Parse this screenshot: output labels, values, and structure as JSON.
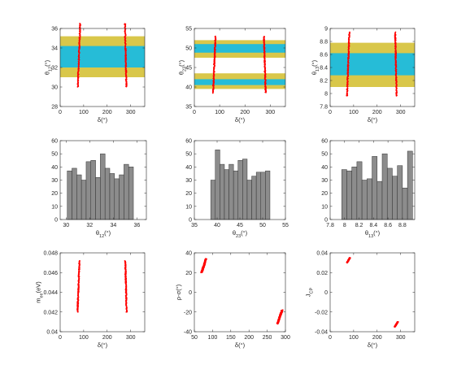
{
  "colors": {
    "band_outer": "#d9c74a",
    "band_inner": "#26bcd7",
    "marker": "#ff0000",
    "bar_fill": "#8c8c8c",
    "bar_edge": "#333333",
    "axis": "#262626"
  },
  "chart_data": [
    {
      "id": "p1",
      "type": "scatter",
      "xlabel": "δ(°)",
      "ylabel": "θ12(°)",
      "xlim": [
        0,
        360
      ],
      "ylim": [
        28,
        36
      ],
      "xticks": [
        "0",
        "100",
        "200",
        "300"
      ],
      "xtick_values": [
        0,
        100,
        200,
        300
      ],
      "yticks": [
        "28",
        "30",
        "32",
        "34",
        "36"
      ],
      "ytick_values": [
        28,
        30,
        32,
        34,
        36
      ],
      "bands": [
        {
          "ymin": 31.0,
          "ymax": 35.2,
          "color": "band_outer"
        },
        {
          "ymin": 32.0,
          "ymax": 34.2,
          "color": "band_inner"
        }
      ],
      "clusters": [
        {
          "x_start": 75,
          "x_end": 85,
          "y_min": 30.0,
          "y_max": 36.5
        },
        {
          "x_start": 282,
          "x_end": 276,
          "y_min": 30.0,
          "y_max": 36.5
        }
      ]
    },
    {
      "id": "p2",
      "type": "scatter",
      "xlabel": "δ(°)",
      "ylabel": "θ23(°)",
      "xlim": [
        0,
        360
      ],
      "ylim": [
        35,
        55
      ],
      "xticks": [
        "0",
        "100",
        "200",
        "300"
      ],
      "xtick_values": [
        0,
        100,
        200,
        300
      ],
      "yticks": [
        "35",
        "40",
        "45",
        "50",
        "55"
      ],
      "ytick_values": [
        35,
        40,
        45,
        50,
        55
      ],
      "bands": [
        {
          "ymin": 39.5,
          "ymax": 43.5,
          "color": "band_outer"
        },
        {
          "ymin": 47.5,
          "ymax": 52.0,
          "color": "band_outer"
        },
        {
          "ymin": 40.5,
          "ymax": 42.0,
          "color": "band_inner"
        },
        {
          "ymin": 48.8,
          "ymax": 51.0,
          "color": "band_inner"
        }
      ],
      "clusters": [
        {
          "x_start": 74,
          "x_end": 84,
          "y_min": 38.5,
          "y_max": 53.0
        },
        {
          "x_start": 282,
          "x_end": 275,
          "y_min": 38.5,
          "y_max": 53.0
        }
      ]
    },
    {
      "id": "p3",
      "type": "scatter",
      "xlabel": "δ(°)",
      "ylabel": "θ13(°)",
      "xlim": [
        0,
        360
      ],
      "ylim": [
        7.8,
        9.0
      ],
      "xticks": [
        "0",
        "100",
        "200",
        "300"
      ],
      "xtick_values": [
        0,
        100,
        200,
        300
      ],
      "yticks": [
        "7.8",
        "8",
        "8.2",
        "8.4",
        "8.6",
        "8.8",
        "9"
      ],
      "ytick_values": [
        7.8,
        8.0,
        8.2,
        8.4,
        8.6,
        8.8,
        9.0
      ],
      "bands": [
        {
          "ymin": 8.1,
          "ymax": 8.78,
          "color": "band_outer"
        },
        {
          "ymin": 8.28,
          "ymax": 8.62,
          "color": "band_inner"
        }
      ],
      "clusters": [
        {
          "x_start": 72,
          "x_end": 82,
          "y_min": 7.96,
          "y_max": 8.94
        },
        {
          "x_start": 283,
          "x_end": 277,
          "y_min": 7.96,
          "y_max": 8.94
        }
      ]
    },
    {
      "id": "p4",
      "type": "bar",
      "xlabel": "θ12(°)",
      "ylabel": "",
      "xlim": [
        29.5,
        36.8
      ],
      "ylim": [
        0,
        60
      ],
      "xticks": [
        "30",
        "32",
        "34",
        "36"
      ],
      "xtick_values": [
        30,
        32,
        34,
        36
      ],
      "yticks": [
        "0",
        "10",
        "20",
        "30",
        "40",
        "50",
        "60"
      ],
      "ytick_values": [
        0,
        10,
        20,
        30,
        40,
        50,
        60
      ],
      "bin_start": 30.1,
      "bin_width": 0.4,
      "values": [
        37,
        39,
        34,
        30,
        44,
        45,
        32,
        50,
        39,
        35,
        31,
        34,
        42,
        40
      ]
    },
    {
      "id": "p5",
      "type": "bar",
      "xlabel": "θ23(°)",
      "ylabel": "",
      "xlim": [
        35,
        55
      ],
      "ylim": [
        0,
        60
      ],
      "xticks": [
        "35",
        "40",
        "45",
        "50",
        "55"
      ],
      "xtick_values": [
        35,
        40,
        45,
        50,
        55
      ],
      "yticks": [
        "0",
        "10",
        "20",
        "30",
        "40",
        "50",
        "60"
      ],
      "ytick_values": [
        0,
        10,
        20,
        30,
        40,
        50,
        60
      ],
      "bin_start": 38.6,
      "bin_width": 1.0,
      "values": [
        30,
        53,
        42,
        38,
        42,
        37,
        45,
        46,
        30,
        33,
        36,
        36,
        37
      ]
    },
    {
      "id": "p6",
      "type": "bar",
      "xlabel": "θ13(°)",
      "ylabel": "",
      "xlim": [
        7.8,
        8.97
      ],
      "ylim": [
        0,
        60
      ],
      "xticks": [
        "7.8",
        "8",
        "8.2",
        "8.4",
        "8.6",
        "8.8"
      ],
      "xtick_values": [
        7.8,
        8.0,
        8.2,
        8.4,
        8.6,
        8.8
      ],
      "yticks": [
        "0",
        "10",
        "20",
        "30",
        "40",
        "50",
        "60"
      ],
      "ytick_values": [
        0,
        10,
        20,
        30,
        40,
        50,
        60
      ],
      "bin_start": 7.96,
      "bin_width": 0.07,
      "values": [
        38,
        37,
        40,
        44,
        30,
        31,
        48,
        29,
        50,
        39,
        33,
        41,
        24,
        52
      ]
    },
    {
      "id": "p7",
      "type": "scatter",
      "xlabel": "δ(°)",
      "ylabel": "mee(eV)",
      "xlim": [
        0,
        360
      ],
      "ylim": [
        0.04,
        0.048
      ],
      "xticks": [
        "0",
        "100",
        "200",
        "300"
      ],
      "xtick_values": [
        0,
        100,
        200,
        300
      ],
      "yticks": [
        "0.04",
        "0.042",
        "0.044",
        "0.046",
        "0.048"
      ],
      "ytick_values": [
        0.04,
        0.042,
        0.044,
        0.046,
        0.048
      ],
      "bands": [],
      "clusters": [
        {
          "x_start": 74,
          "x_end": 82,
          "y_min": 0.042,
          "y_max": 0.0472
        },
        {
          "x_start": 283,
          "x_end": 277,
          "y_min": 0.042,
          "y_max": 0.0472
        }
      ]
    },
    {
      "id": "p8",
      "type": "scatter",
      "xlabel": "δ(°)",
      "ylabel": "ρ-σ(°)",
      "xlim": [
        50,
        300
      ],
      "ylim": [
        -40,
        40
      ],
      "xticks": [
        "50",
        "100",
        "150",
        "200",
        "250",
        "300"
      ],
      "xtick_values": [
        50,
        100,
        150,
        200,
        250,
        300
      ],
      "yticks": [
        "-40",
        "-20",
        "0",
        "20",
        "40"
      ],
      "ytick_values": [
        -40,
        -20,
        0,
        20,
        40
      ],
      "bands": [],
      "clusters": [
        {
          "x_start": 70,
          "x_end": 82,
          "y_min": 20,
          "y_max": 34
        },
        {
          "x_start": 278,
          "x_end": 291,
          "y_min": -32,
          "y_max": -18
        }
      ]
    },
    {
      "id": "p9",
      "type": "scatter",
      "xlabel": "δ(°)",
      "ylabel": "JCP",
      "xlim": [
        0,
        360
      ],
      "ylim": [
        -0.04,
        0.04
      ],
      "xticks": [
        "0",
        "100",
        "200",
        "300"
      ],
      "xtick_values": [
        0,
        100,
        200,
        300
      ],
      "yticks": [
        "-0.04",
        "-0.02",
        "0",
        "0.02",
        "0.04"
      ],
      "ytick_values": [
        -0.04,
        -0.02,
        0,
        0.02,
        0.04
      ],
      "bands": [],
      "clusters": [
        {
          "x_start": 72,
          "x_end": 84,
          "y_min": 0.03,
          "y_max": 0.035
        },
        {
          "x_start": 275,
          "x_end": 288,
          "y_min": -0.035,
          "y_max": -0.03
        }
      ]
    }
  ]
}
